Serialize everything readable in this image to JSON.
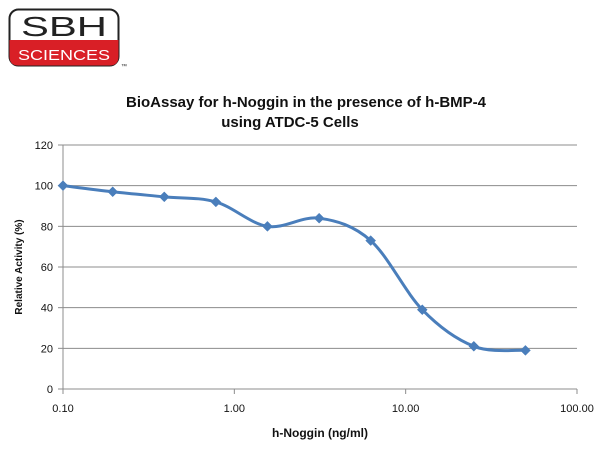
{
  "logo": {
    "line1": "SBH",
    "line2": "SCIENCES",
    "mark": "™"
  },
  "chart_data": {
    "type": "line",
    "title_lines": [
      "BioAssay for h-Noggin in the presence of h-BMP-4",
      "using ATDC-5 Cells"
    ],
    "xlabel": "h-Noggin (ng/ml)",
    "ylabel": "Relative Activity (%)",
    "x_scale": "log",
    "xlim": [
      0.1,
      100
    ],
    "ylim": [
      0,
      120
    ],
    "x_ticks": [
      0.1,
      1,
      10,
      100
    ],
    "x_tick_labels": [
      "0.10",
      "1.00",
      "10.00",
      "100.00"
    ],
    "y_ticks": [
      0,
      20,
      40,
      60,
      80,
      100,
      120
    ],
    "y_tick_labels": [
      "0",
      "20",
      "40",
      "60",
      "80",
      "100",
      "120"
    ],
    "grid": "horizontal",
    "legend": "none",
    "series": [
      {
        "color": "#4a7ebb",
        "marker": "diamond",
        "x": [
          0.1,
          0.195,
          0.39,
          0.78,
          1.56,
          3.125,
          6.25,
          12.5,
          25,
          50
        ],
        "y": [
          100,
          97,
          94.5,
          92,
          80,
          84,
          73,
          39,
          21,
          19
        ]
      }
    ]
  }
}
